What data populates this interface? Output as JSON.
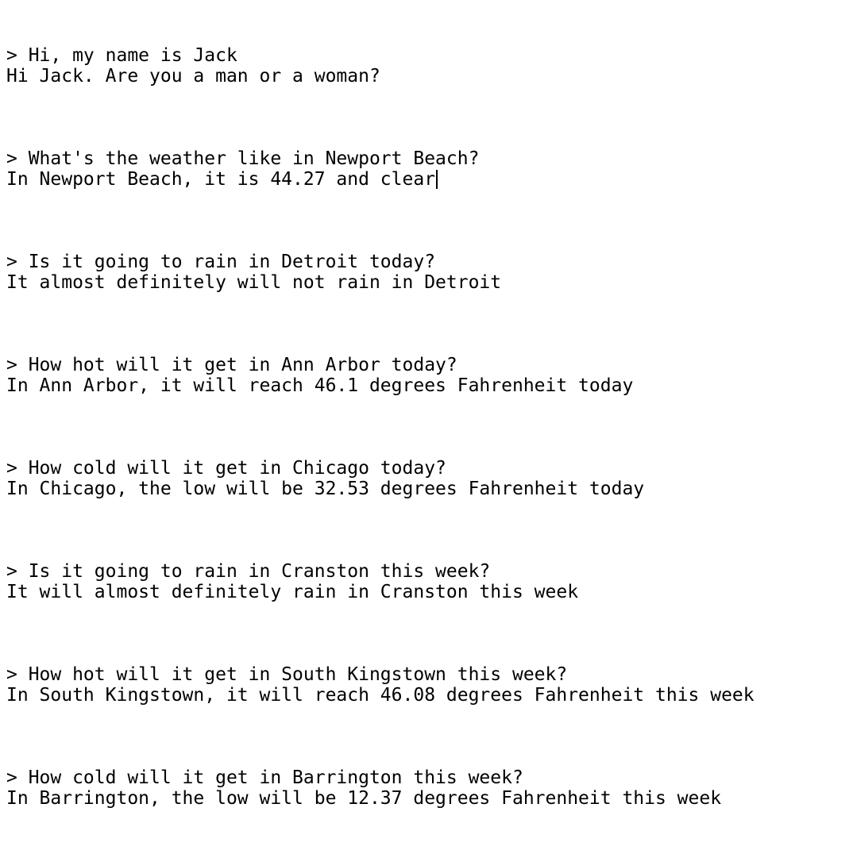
{
  "exchanges": [
    {
      "prompt": "> Hi, my name is Jack",
      "response": "Hi Jack. Are you a man or a woman?"
    },
    {
      "prompt": "> What's the weather like in Newport Beach?",
      "response": "In Newport Beach, it is 44.27 and clear"
    },
    {
      "prompt": "> Is it going to rain in Detroit today?",
      "response": "It almost definitely will not rain in Detroit"
    },
    {
      "prompt": "> How hot will it get in Ann Arbor today?",
      "response": "In Ann Arbor, it will reach 46.1 degrees Fahrenheit today"
    },
    {
      "prompt": "> How cold will it get in Chicago today?",
      "response": "In Chicago, the low will be 32.53 degrees Fahrenheit today"
    },
    {
      "prompt": "> Is it going to rain in Cranston this week?",
      "response": "It will almost definitely rain in Cranston this week"
    },
    {
      "prompt": "> How hot will it get in South Kingstown this week?",
      "response": "In South Kingstown, it will reach 46.08 degrees Fahrenheit this week"
    },
    {
      "prompt": "> How cold will it get in Barrington this week?",
      "response": "In Barrington, the low will be 12.37 degrees Fahrenheit this week"
    }
  ]
}
